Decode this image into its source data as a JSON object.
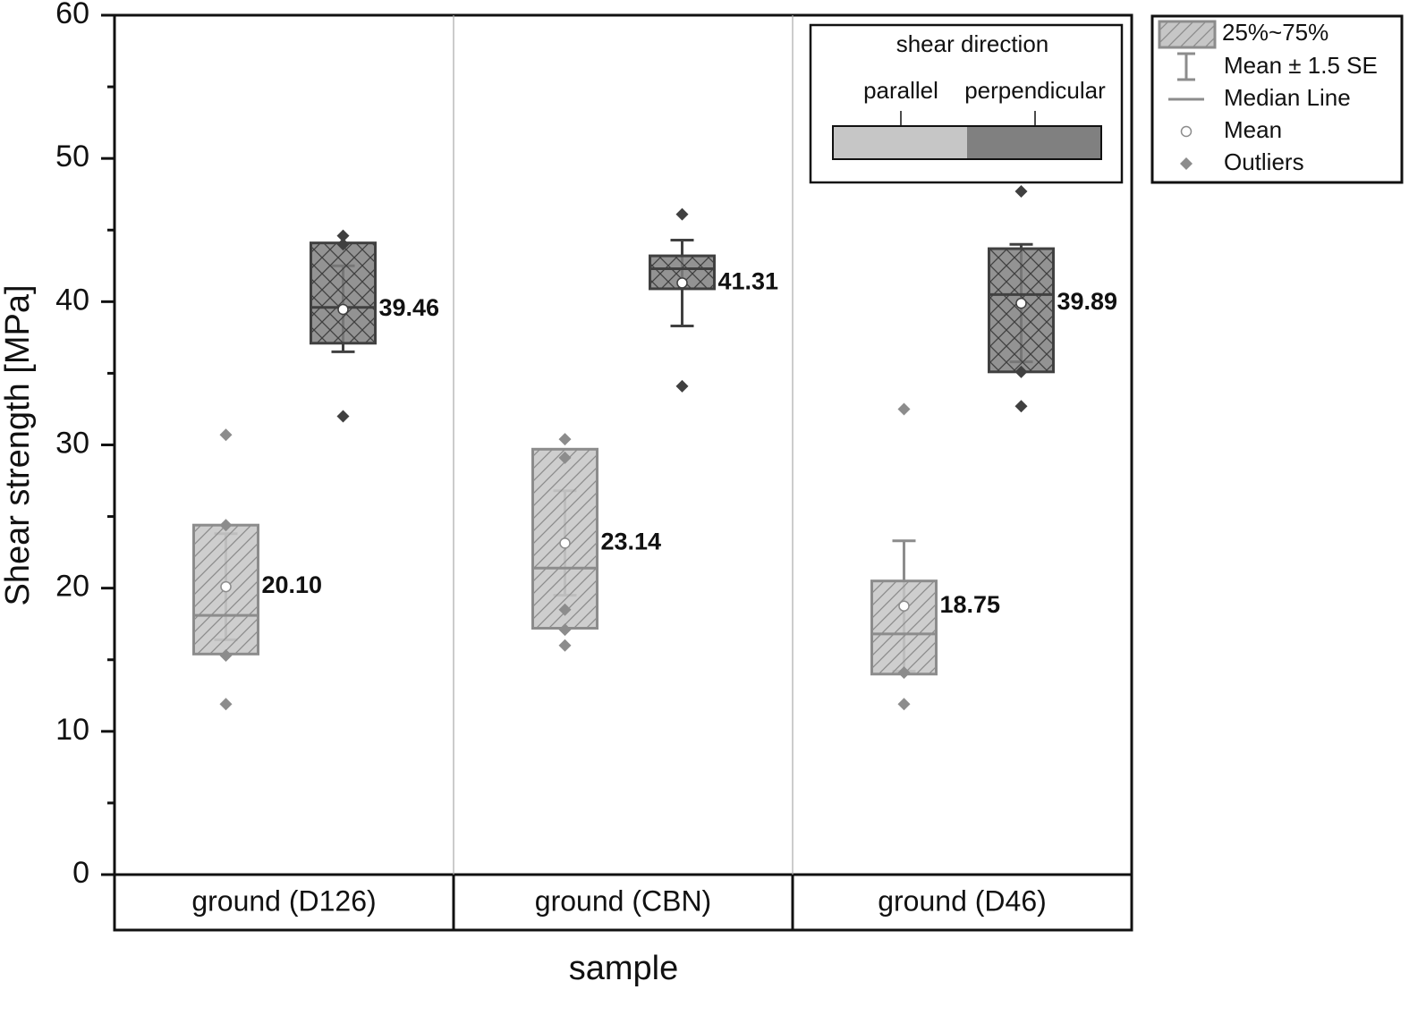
{
  "chart_data": {
    "type": "box",
    "ylabel": "Shear strength [MPa]",
    "xlabel": "sample",
    "categories": [
      "ground (D126)",
      "ground (CBN)",
      "ground (D46)"
    ],
    "ylim": [
      0,
      60
    ],
    "yticks": [
      0,
      10,
      20,
      30,
      40,
      50,
      60
    ],
    "yminorticks": [
      5,
      15,
      25,
      35,
      45,
      55
    ],
    "legend_items": [
      "25%~75%",
      "Mean ± 1.5 SE",
      "Median Line",
      "Mean",
      "Outliers"
    ],
    "direction_legend_title": "shear direction",
    "series": [
      {
        "name": "parallel",
        "color": "#c6c6c6",
        "edge": "#8c8c8c",
        "hatch": "diagonal",
        "q1": [
          15.4,
          17.2,
          14.0
        ],
        "q3": [
          24.4,
          29.7,
          20.5
        ],
        "median": [
          18.1,
          21.4,
          16.8
        ],
        "mean": [
          20.1,
          23.14,
          18.75
        ],
        "mean_labels": [
          "20.10",
          "23.14",
          "18.75"
        ],
        "whisker_low": [
          16.4,
          19.5,
          14.2
        ],
        "whisker_high": [
          23.8,
          26.8,
          23.3
        ],
        "outliers": [
          [
            30.7,
            24.4,
            15.3,
            11.9
          ],
          [
            30.4,
            29.1,
            18.5,
            17.1,
            16.0
          ],
          [
            32.5,
            14.1,
            11.9
          ]
        ]
      },
      {
        "name": "perpendicular",
        "color": "#808080",
        "edge": "#404040",
        "hatch": "cross",
        "q1": [
          37.1,
          40.9,
          35.1
        ],
        "q3": [
          44.1,
          43.2,
          43.7
        ],
        "median": [
          39.6,
          42.3,
          40.5
        ],
        "mean": [
          39.46,
          41.31,
          39.89
        ],
        "mean_labels": [
          "39.46",
          "41.31",
          "39.89"
        ],
        "whisker_low": [
          36.5,
          38.3,
          35.8
        ],
        "whisker_high": [
          42.5,
          44.3,
          44.0
        ],
        "outliers": [
          [
            44.6,
            44.0,
            32.0
          ],
          [
            46.1,
            34.1
          ],
          [
            47.7,
            35.1,
            32.7
          ]
        ]
      }
    ]
  }
}
